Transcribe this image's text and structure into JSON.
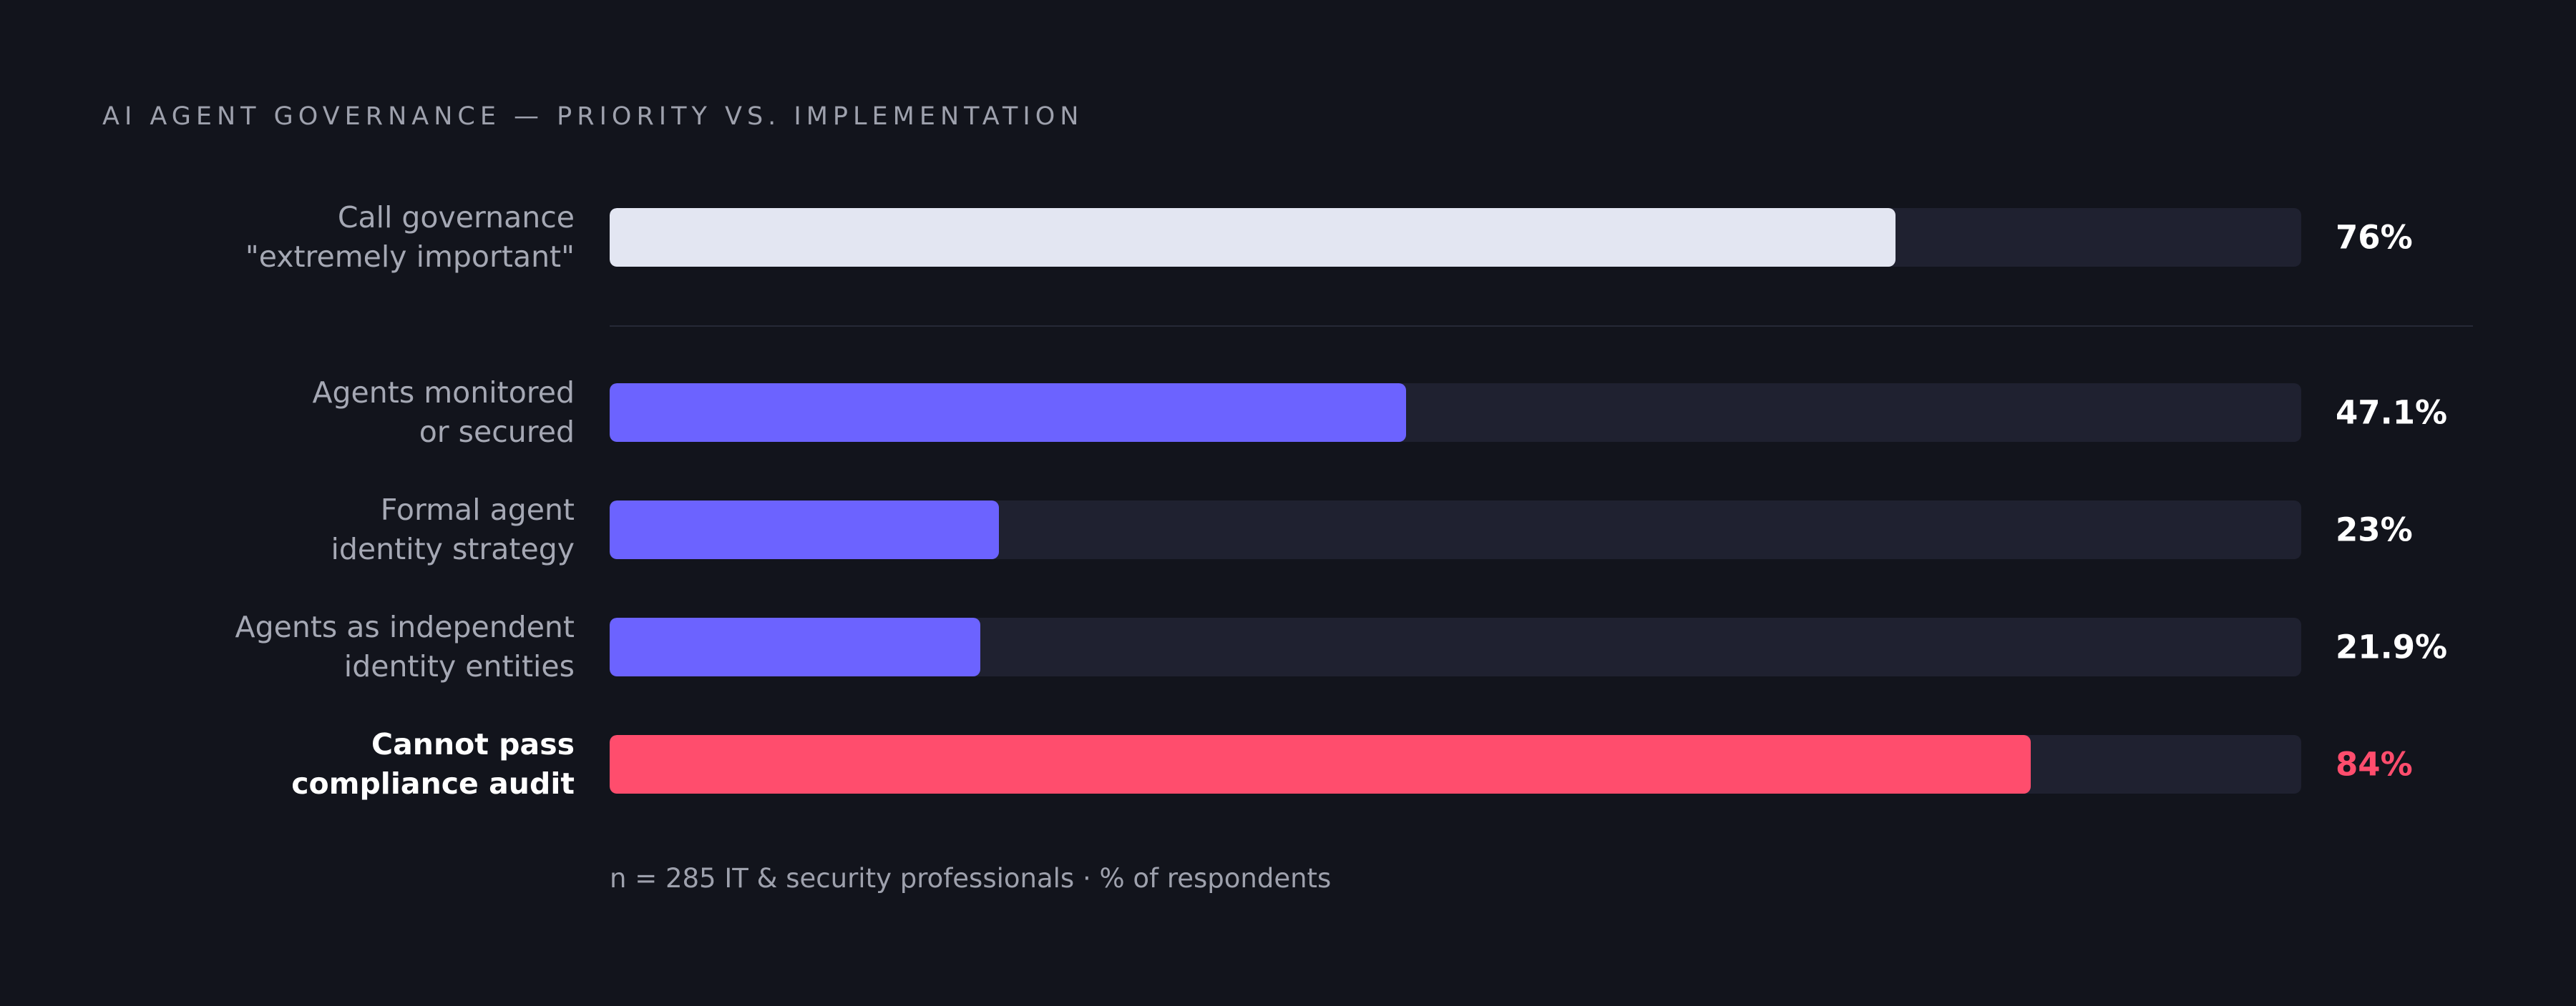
{
  "chart_data": {
    "type": "bar",
    "orientation": "horizontal",
    "title": "AI AGENT GOVERNANCE — PRIORITY VS. IMPLEMENTATION",
    "xlim": [
      0,
      100
    ],
    "grid": false,
    "categories": [
      "Call governance \"extremely important\"",
      "Agents monitored or secured",
      "Formal agent identity strategy",
      "Agents as independent identity entities",
      "Cannot pass compliance audit"
    ],
    "rows": [
      {
        "label_lines": [
          "Call governance",
          "\"extremely important\""
        ],
        "value": 76,
        "value_label": "76%",
        "color": "#e3e6f2",
        "value_color": "#ffffff",
        "emphasis": false
      },
      {
        "label_lines": [
          "Agents monitored",
          "or secured"
        ],
        "value": 47.1,
        "value_label": "47.1%",
        "color": "#6c63ff",
        "value_color": "#ffffff",
        "emphasis": false
      },
      {
        "label_lines": [
          "Formal agent",
          "identity strategy"
        ],
        "value": 23,
        "value_label": "23%",
        "color": "#6c63ff",
        "value_color": "#ffffff",
        "emphasis": false
      },
      {
        "label_lines": [
          "Agents as independent",
          "identity entities"
        ],
        "value": 21.9,
        "value_label": "21.9%",
        "color": "#6c63ff",
        "value_color": "#ffffff",
        "emphasis": false
      },
      {
        "label_lines": [
          "Cannot pass",
          "compliance audit"
        ],
        "value": 84,
        "value_label": "84%",
        "color": "#ff4d6d",
        "value_color": "#ff4d6d",
        "emphasis": true
      }
    ],
    "footnote": "n = 285 IT & security professionals · % of respondents",
    "colors": {
      "background": "#12141c",
      "track": "#1f2130"
    }
  }
}
